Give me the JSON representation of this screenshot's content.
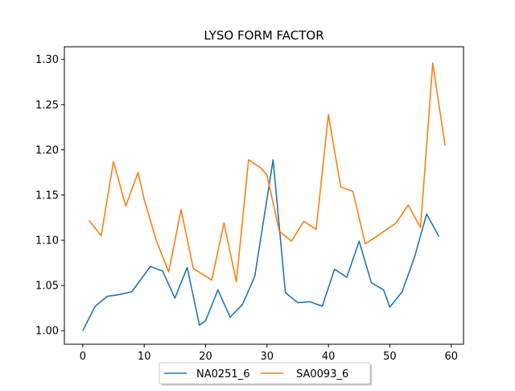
{
  "chart_data": {
    "type": "line",
    "title": "LYSO FORM FACTOR",
    "xlabel": "",
    "ylabel": "",
    "xlim": [
      -3,
      62
    ],
    "ylim": [
      0.985,
      1.314
    ],
    "xticks": [
      0,
      10,
      20,
      30,
      40,
      50,
      60
    ],
    "xtick_labels": [
      "0",
      "10",
      "20",
      "30",
      "40",
      "50",
      "60"
    ],
    "yticks": [
      1.0,
      1.05,
      1.1,
      1.15,
      1.2,
      1.25,
      1.3
    ],
    "ytick_labels": [
      "1.00",
      "1.05",
      "1.10",
      "1.15",
      "1.20",
      "1.25",
      "1.30"
    ],
    "grid": false,
    "legend_position": "bottom-center, below plot",
    "series": [
      {
        "name": "NA0251_6",
        "color": "#1f77b4",
        "x": [
          0,
          2,
          4,
          6,
          8,
          11,
          13,
          15,
          17,
          19,
          20,
          22,
          24,
          26,
          28,
          31,
          33,
          35,
          37,
          39,
          41,
          43,
          45,
          47,
          49,
          50,
          52,
          54,
          56,
          58
        ],
        "y": [
          1.0,
          1.027,
          1.038,
          1.04,
          1.043,
          1.071,
          1.066,
          1.036,
          1.07,
          1.006,
          1.011,
          1.045,
          1.015,
          1.029,
          1.06,
          1.189,
          1.042,
          1.031,
          1.032,
          1.027,
          1.068,
          1.059,
          1.099,
          1.053,
          1.045,
          1.026,
          1.043,
          1.081,
          1.129,
          1.104
        ]
      },
      {
        "name": "SA0093_6",
        "color": "#ff7f0e",
        "x": [
          1,
          3,
          5,
          7,
          9,
          10,
          12,
          14,
          16,
          18,
          21,
          23,
          25,
          27,
          29,
          30,
          32,
          34,
          36,
          38,
          40,
          42,
          44,
          46,
          48,
          51,
          53,
          55,
          57,
          59
        ],
        "y": [
          1.122,
          1.105,
          1.187,
          1.138,
          1.175,
          1.145,
          1.099,
          1.065,
          1.134,
          1.069,
          1.056,
          1.119,
          1.054,
          1.189,
          1.18,
          1.172,
          1.11,
          1.099,
          1.121,
          1.112,
          1.239,
          1.159,
          1.154,
          1.096,
          1.105,
          1.119,
          1.139,
          1.114,
          1.296,
          1.205
        ]
      }
    ]
  }
}
